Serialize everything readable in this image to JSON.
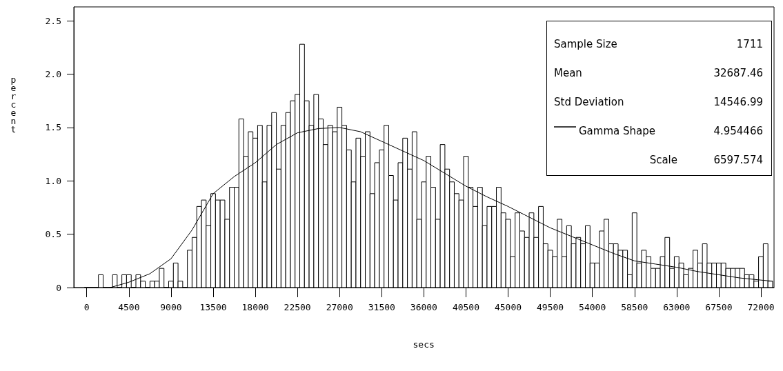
{
  "chart_data": {
    "type": "histogram",
    "xlabel": "secs",
    "ylabel": "percent",
    "xlim": [
      -1380,
      73400
    ],
    "ylim": [
      0,
      2.63
    ],
    "xticks": [
      0,
      4500,
      9000,
      13500,
      18000,
      22500,
      27000,
      31500,
      36000,
      40500,
      45000,
      49500,
      54000,
      58500,
      63000,
      67500,
      72000
    ],
    "yticks": [
      0,
      0.5,
      {
        "value": 1,
        "label": "1.0"
      },
      1.5,
      {
        "value": 2,
        "label": "2.0"
      },
      2.5
    ],
    "grid": false,
    "legend": "top right",
    "marker": "none",
    "line_style": "solid",
    "series": [
      {
        "type": "histogram",
        "color": "#000000",
        "bins": [
          -250,
          250,
          750,
          1250,
          1750,
          2250,
          2750,
          3250,
          3750,
          4250,
          4750,
          5250,
          5750,
          6250,
          6750,
          7250,
          7750,
          8250,
          8750,
          9250,
          9750,
          10250,
          10750,
          11250,
          11750,
          12250,
          12750,
          13250,
          13750,
          14250,
          14750,
          15250,
          15750,
          16250,
          16750,
          17250,
          17750,
          18250,
          18750,
          19250,
          19750,
          20250,
          20750,
          21250,
          21750,
          22250,
          22750,
          23250,
          23750,
          24250,
          24750,
          25250,
          25750,
          26250,
          26750,
          27250,
          27750,
          28250,
          28750,
          29250,
          29750,
          30250,
          30750,
          31250,
          31750,
          32250,
          32750,
          33250,
          33750,
          34250,
          34750,
          35250,
          35750,
          36250,
          36750,
          37250,
          37750,
          38250,
          38750,
          39250,
          39750,
          40250,
          40750,
          41250,
          41750,
          42250,
          42750,
          43250,
          43750,
          44250,
          44750,
          45250,
          45750,
          46250,
          46750,
          47250,
          47750,
          48250,
          48750,
          49250,
          49750,
          50250,
          50750,
          51250,
          51750,
          52250,
          52750,
          53250,
          53750,
          54250,
          54750,
          55250,
          55750,
          56250,
          56750,
          57250,
          57750,
          58250,
          58750,
          59250,
          59750,
          60250,
          60750,
          61250,
          61750,
          62250,
          62750,
          63250,
          63750,
          64250,
          64750,
          65250,
          65750,
          66250,
          66750,
          67250,
          67750,
          68250,
          68750,
          69250,
          69750,
          70250,
          70750,
          71250,
          71750,
          72250,
          72750,
          73250
        ],
        "values": [
          0,
          0,
          0,
          0.12,
          0,
          0,
          0.12,
          0,
          0.12,
          0.12,
          0,
          0.12,
          0.06,
          0,
          0.06,
          0.06,
          0.18,
          0,
          0.06,
          0.23,
          0.06,
          0,
          0.35,
          0.47,
          0.76,
          0.82,
          0.58,
          0.88,
          0.82,
          0.82,
          0.64,
          0.94,
          0.94,
          1.58,
          1.23,
          1.46,
          1.4,
          1.52,
          0.99,
          1.52,
          1.64,
          1.11,
          1.52,
          1.64,
          1.75,
          1.81,
          2.28,
          1.75,
          1.52,
          1.81,
          1.58,
          1.34,
          1.52,
          1.46,
          1.69,
          1.52,
          1.29,
          0.99,
          1.4,
          1.23,
          1.46,
          0.88,
          1.17,
          1.29,
          1.52,
          1.05,
          0.82,
          1.17,
          1.4,
          1.11,
          1.46,
          0.64,
          0.99,
          1.23,
          0.94,
          0.64,
          1.34,
          1.11,
          0.99,
          0.88,
          0.82,
          1.23,
          0.94,
          0.76,
          0.94,
          0.58,
          0.76,
          0.76,
          0.94,
          0.7,
          0.64,
          0.29,
          0.7,
          0.53,
          0.47,
          0.7,
          0.47,
          0.76,
          0.41,
          0.35,
          0.29,
          0.64,
          0.29,
          0.58,
          0.41,
          0.47,
          0.41,
          0.58,
          0.23,
          0.23,
          0.53,
          0.64,
          0.41,
          0.41,
          0.35,
          0.35,
          0.12,
          0.7,
          0.23,
          0.35,
          0.29,
          0.18,
          0.18,
          0.29,
          0.47,
          0.18,
          0.29,
          0.23,
          0.12,
          0.18,
          0.35,
          0.23,
          0.41,
          0.23,
          0.23,
          0.23,
          0.23,
          0.18,
          0.18,
          0.18,
          0.18,
          0.12,
          0.12,
          0.06,
          0.29,
          0.41,
          0.06
        ]
      },
      {
        "type": "line",
        "name": "Gamma Shape",
        "color": "#000000",
        "x": [
          2500,
          4500,
          6750,
          9000,
          11250,
          13500,
          15750,
          18000,
          20250,
          22500,
          24750,
          27000,
          29250,
          31500,
          33750,
          36000,
          38250,
          40500,
          42750,
          45000,
          47250,
          49500,
          51750,
          54000,
          56250,
          58500,
          60750,
          63000,
          65250,
          67500,
          69750,
          72000,
          73250
        ],
        "values": [
          0,
          0.05,
          0.13,
          0.27,
          0.54,
          0.88,
          1.04,
          1.17,
          1.34,
          1.45,
          1.49,
          1.5,
          1.46,
          1.37,
          1.28,
          1.19,
          1.07,
          0.95,
          0.85,
          0.76,
          0.66,
          0.56,
          0.48,
          0.4,
          0.32,
          0.25,
          0.22,
          0.19,
          0.15,
          0.12,
          0.09,
          0.07,
          0.06
        ]
      }
    ],
    "annotations": [
      "Sample Size",
      "1711",
      "Mean",
      "32687.46",
      "Std Deviation",
      "14546.99",
      "4.954466",
      "Scale",
      "6597.574"
    ]
  }
}
